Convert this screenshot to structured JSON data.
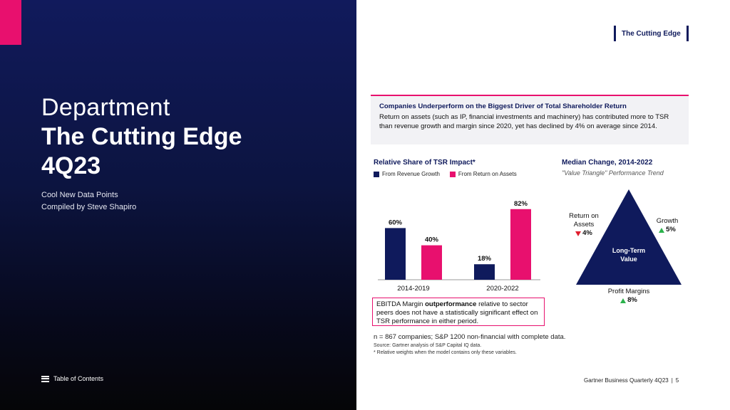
{
  "header": {
    "tag": "The Cutting Edge"
  },
  "cover": {
    "department": "Department",
    "title": "The Cutting Edge",
    "issue": "4Q23",
    "tagline": "Cool New Data Points",
    "byline": "Compiled by Steve Shapiro",
    "toc_label": "Table of Contents"
  },
  "callout": {
    "heading": "Companies Underperform on the Biggest Driver of Total Shareholder Return",
    "body": "Return on assets (such as IP, financial investments and machinery) has contributed more to TSR than revenue growth and margin since 2020, yet has declined by 4% on average since 2014."
  },
  "chart_data": [
    {
      "type": "bar",
      "title": "Relative Share of TSR Impact*",
      "categories": [
        "2014-2019",
        "2020-2022"
      ],
      "series": [
        {
          "name": "From Revenue Growth",
          "values": [
            60,
            18
          ],
          "labels": [
            "60%",
            "18%"
          ],
          "color": "#0f1a5c"
        },
        {
          "name": "From Return on Assets",
          "values": [
            40,
            82
          ],
          "labels": [
            "40%",
            "82%"
          ],
          "color": "#e8106e"
        }
      ],
      "ylim": [
        0,
        100
      ],
      "grid": false,
      "legend": "top-left"
    }
  ],
  "note": {
    "before": "EBITDA Margin ",
    "bold": "outperformance",
    "after": " relative to sector peers does not have a statistically significant effect on TSR performance in either period."
  },
  "triangle": {
    "title": "Median Change, 2014-2022",
    "subtitle": "\"Value Triangle\" Performance Trend",
    "center_line1": "Long-Term",
    "center_line2": "Value",
    "roa_line1": "Return on",
    "roa_line2": "Assets",
    "roa_change": "4%",
    "growth_label": "Growth",
    "growth_change": "5%",
    "margin_label": "Profit Margins",
    "margin_change": "8%",
    "fill_color": "#0f1a5c"
  },
  "footnotes": {
    "n": "n = 867 companies; S&P 1200 non-financial with complete data.",
    "source": "Source: Gartner analysis of S&P Capital IQ data.",
    "weights": "* Relative weights when the model contains only these variables."
  },
  "footer": {
    "publication": "Gartner Business Quarterly 4Q23",
    "separator": "|",
    "page": "5"
  }
}
